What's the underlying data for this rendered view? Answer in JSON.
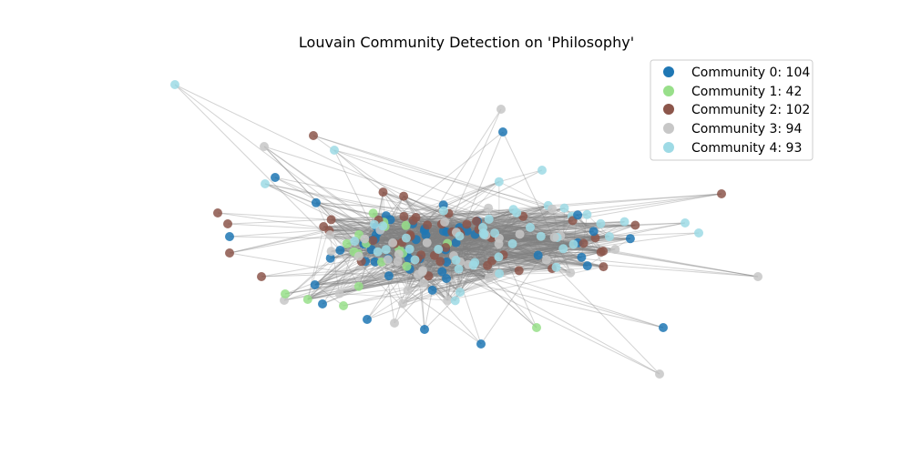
{
  "chart_data": {
    "type": "network",
    "title": "Louvain Community Detection on 'Philosophy'",
    "legend_placement": "top-right",
    "edge_color": "#808080",
    "communities": [
      {
        "id": 0,
        "label": "Community 0: 104",
        "count": 104,
        "color": "#1f77b4"
      },
      {
        "id": 1,
        "label": "Community 1: 42",
        "count": 42,
        "color": "#98df8a"
      },
      {
        "id": 2,
        "label": "Community 2: 102",
        "count": 102,
        "color": "#8c564b"
      },
      {
        "id": 3,
        "label": "Community 3: 94",
        "count": 94,
        "color": "#c7c7c7"
      },
      {
        "id": 4,
        "label": "Community 4: 93",
        "count": 93,
        "color": "#9edae5"
      }
    ]
  }
}
